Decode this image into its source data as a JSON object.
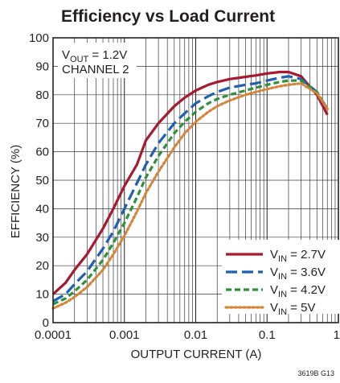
{
  "chart_data": {
    "type": "line",
    "title": "Efficiency vs Load Current",
    "xlabel": "OUTPUT CURRENT (A)",
    "ylabel": "EFFICIENCY (%)",
    "x_scale": "log",
    "xlim": [
      0.0001,
      1
    ],
    "ylim": [
      0,
      100
    ],
    "x_tick_labels": [
      "0.0001",
      "0.001",
      "0.01",
      "0.1",
      "1"
    ],
    "y_tick_labels": [
      "0",
      "10",
      "20",
      "30",
      "40",
      "50",
      "60",
      "70",
      "80",
      "90",
      "100"
    ],
    "grid": true,
    "legend_position": "bottom-right",
    "annotation": {
      "line1_main": "V",
      "line1_sub": "OUT",
      "line1_tail": " = 1.2V",
      "line2": "CHANNEL 2"
    },
    "figure_id": "3619B G13",
    "series": [
      {
        "legend_main": "V",
        "legend_sub": "IN",
        "legend_tail": " = 2.7V",
        "color": "#a6192e",
        "dash": "solid",
        "x": [
          0.0001,
          0.00015,
          0.0002,
          0.0003,
          0.0005,
          0.0007,
          0.001,
          0.0015,
          0.002,
          0.003,
          0.005,
          0.007,
          0.01,
          0.015,
          0.02,
          0.03,
          0.05,
          0.07,
          0.1,
          0.15,
          0.2,
          0.3,
          0.5,
          0.7
        ],
        "y": [
          10,
          14,
          18.5,
          24,
          33,
          40,
          48,
          55.5,
          64,
          70,
          76,
          79,
          81.5,
          83.5,
          84.5,
          85.5,
          86.3,
          86.8,
          87.5,
          88,
          88,
          86.5,
          80,
          73
        ]
      },
      {
        "legend_main": "V",
        "legend_sub": "IN",
        "legend_tail": " = 3.6V",
        "color": "#1f5fb4",
        "dash": "long",
        "x": [
          0.0001,
          0.00015,
          0.0002,
          0.0003,
          0.0005,
          0.0007,
          0.001,
          0.0015,
          0.002,
          0.003,
          0.005,
          0.007,
          0.01,
          0.015,
          0.02,
          0.03,
          0.05,
          0.07,
          0.1,
          0.15,
          0.2,
          0.3,
          0.5,
          0.7
        ],
        "y": [
          7.5,
          10,
          13.5,
          18,
          26,
          32,
          40,
          49,
          55.5,
          63,
          70,
          73.5,
          77,
          79.5,
          81,
          82.5,
          83.5,
          84,
          85,
          86,
          86.5,
          85.5,
          81,
          75
        ]
      },
      {
        "legend_main": "V",
        "legend_sub": "IN",
        "legend_tail": " = 4.2V",
        "color": "#2f8f3b",
        "dash": "medium",
        "x": [
          0.0001,
          0.00015,
          0.0002,
          0.0003,
          0.0005,
          0.0007,
          0.001,
          0.0015,
          0.002,
          0.003,
          0.005,
          0.007,
          0.01,
          0.015,
          0.02,
          0.03,
          0.05,
          0.07,
          0.1,
          0.15,
          0.2,
          0.3,
          0.5,
          0.7
        ],
        "y": [
          6.5,
          8.5,
          11,
          15,
          22,
          28,
          35,
          44,
          51,
          58.5,
          66.5,
          70.5,
          74,
          77,
          78.5,
          80,
          81.5,
          82.5,
          83.5,
          84.5,
          85,
          85,
          81,
          75
        ]
      },
      {
        "legend_main": "V",
        "legend_sub": "IN",
        "legend_tail": " = 5V",
        "color": "#d4843a",
        "dash": "dotted",
        "x": [
          0.0001,
          0.00015,
          0.0002,
          0.0003,
          0.0005,
          0.0007,
          0.001,
          0.0015,
          0.002,
          0.003,
          0.005,
          0.007,
          0.01,
          0.015,
          0.02,
          0.03,
          0.05,
          0.07,
          0.1,
          0.15,
          0.2,
          0.3,
          0.5,
          0.7
        ],
        "y": [
          5,
          7,
          9,
          12.5,
          18.5,
          24,
          30.5,
          39,
          45.5,
          53,
          61.5,
          66.5,
          70.5,
          74,
          76,
          78,
          80,
          81,
          82,
          83,
          83.5,
          84,
          80.5,
          75
        ]
      }
    ]
  }
}
